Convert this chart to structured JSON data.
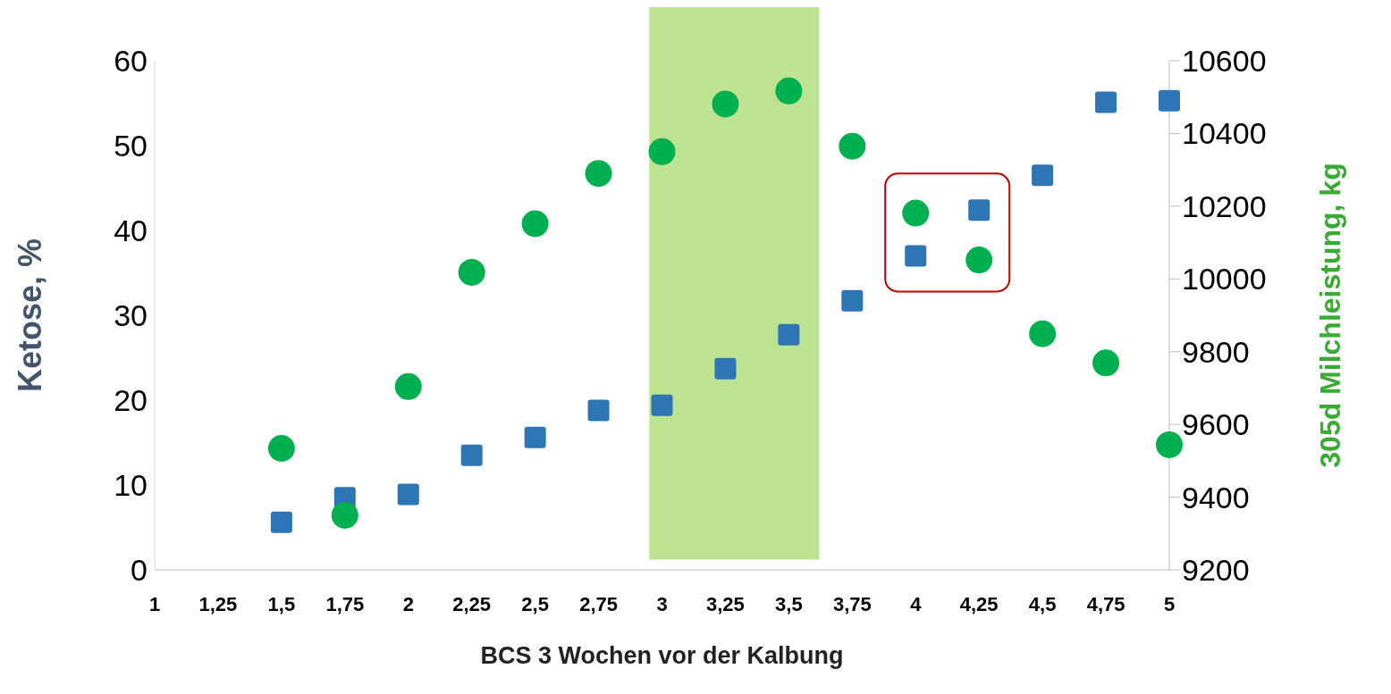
{
  "chart_data": {
    "type": "scatter",
    "xlabel": "BCS 3 Wochen vor der Kalbung",
    "ylabel": "Ketose, %",
    "y2label": "305d Milchleistung, kg",
    "xlim": [
      1,
      5
    ],
    "xticks": [
      1,
      {
        "value": 1.25,
        "label": "1,25"
      },
      {
        "value": 1.5,
        "label": "1,5"
      },
      {
        "value": 1.75,
        "label": "1,75"
      },
      2,
      {
        "value": 2.25,
        "label": "2,25"
      },
      {
        "value": 2.5,
        "label": "2,5"
      },
      {
        "value": 2.75,
        "label": "2,75"
      },
      3,
      {
        "value": 3.25,
        "label": "3,25"
      },
      {
        "value": 3.5,
        "label": "3,5"
      },
      {
        "value": 3.75,
        "label": "3,75"
      },
      4,
      {
        "value": 4.25,
        "label": "4,25"
      },
      {
        "value": 4.5,
        "label": "4,5"
      },
      {
        "value": 4.75,
        "label": "4,75"
      },
      5
    ],
    "ylim": [
      0,
      60
    ],
    "yticks": [
      0,
      10,
      20,
      30,
      40,
      50,
      60
    ],
    "y2lim": [
      9200,
      10600
    ],
    "y2ticks": [
      9200,
      9400,
      9600,
      9800,
      10000,
      10200,
      10400,
      10600
    ],
    "x": [
      1.5,
      1.75,
      2,
      2.25,
      2.5,
      2.75,
      3,
      3.25,
      3.5,
      3.75,
      4,
      4.25,
      4.5,
      4.75,
      5
    ],
    "series": [
      {
        "color": "#2e75b6",
        "marker": "square",
        "values": [
          5.6,
          8.5,
          8.9,
          13.5,
          15.6,
          18.8,
          19.4,
          23.7,
          27.7,
          31.7,
          37.0,
          42.4,
          46.5,
          55.1,
          55.3
        ]
      },
      {
        "color": "#00b050",
        "marker": "circle",
        "axis": "y2",
        "values": [
          9534,
          9350,
          9704,
          10018,
          10152,
          10290,
          10350,
          10481,
          10517,
          10365,
          10181,
          10052,
          9849,
          9769,
          9544
        ]
      }
    ],
    "bands": [
      {
        "axis": "x",
        "from": 2.95,
        "to": 3.62,
        "color": "#bce292"
      }
    ]
  }
}
